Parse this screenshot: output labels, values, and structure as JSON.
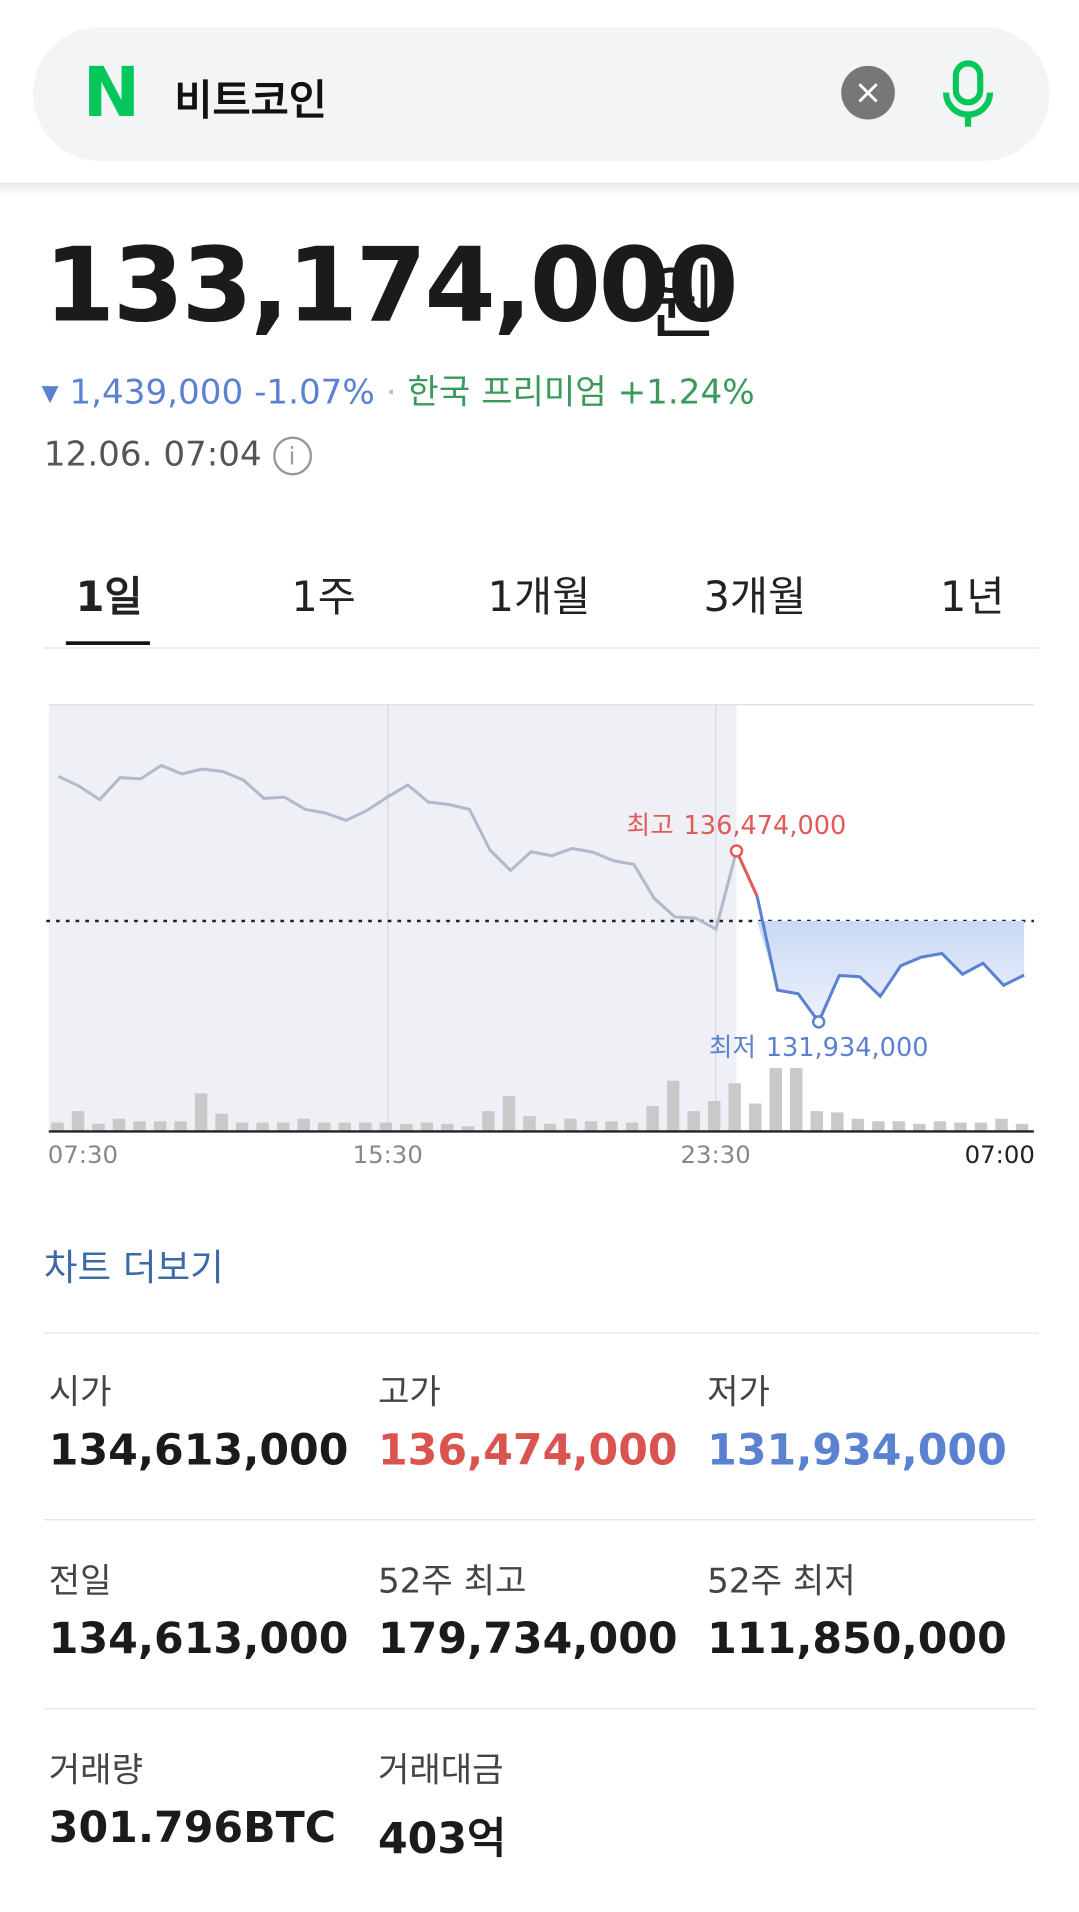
{
  "search": {
    "query": "비트코인"
  },
  "quote": {
    "price": "133,174,000",
    "unit": "원",
    "change": "1,439,000",
    "change_pct": "-1.07%",
    "premium_label": "한국 프리미엄",
    "premium": "+1.24%",
    "time": "12.06. 07:04"
  },
  "tabs": [
    "1일",
    "1주",
    "1개월",
    "3개월",
    "1년"
  ],
  "chart_data": {
    "type": "line",
    "values": [
      138452000,
      138193000,
      137836000,
      138420000,
      138387000,
      138744000,
      138517000,
      138647000,
      138582000,
      138355000,
      137868000,
      137901000,
      137577000,
      137479000,
      137285000,
      137544000,
      137901000,
      138225000,
      137771000,
      137706000,
      137577000,
      136500000,
      135955000,
      136450000,
      136344000,
      136539000,
      136442000,
      136215000,
      136117000,
      135209000,
      134723000,
      134690000,
      134398000,
      136474000,
      135274000,
      132777000,
      132680000,
      131934000,
      133166000,
      133134000,
      132615000,
      133426000,
      133653000,
      133750000,
      133199000,
      133491000,
      132907000,
      133174000
    ],
    "volume": [
      7,
      16,
      6,
      10,
      8,
      8,
      8,
      30,
      14,
      7,
      7,
      7,
      10,
      7,
      7,
      7,
      7,
      6,
      7,
      6,
      4,
      16,
      28,
      12,
      6,
      10,
      8,
      8,
      7,
      20,
      40,
      16,
      24,
      38,
      22,
      50,
      50,
      16,
      15,
      10,
      8,
      8,
      6,
      8,
      7,
      7,
      10,
      6
    ],
    "prev_close": 134613000,
    "ylim": [
      131000000,
      140000000
    ],
    "xtick_labels": [
      "07:30",
      "15:30",
      "23:30",
      "07:00"
    ],
    "high_label": "최고",
    "high_text": "136,474,000",
    "low_label": "최저",
    "low_text": "131,934,000"
  },
  "more_chart": "차트 더보기",
  "stats": [
    [
      {
        "label": "시가",
        "value": "134,613,000"
      },
      {
        "label": "고가",
        "value": "136,474,000"
      },
      {
        "label": "저가",
        "value": "131,934,000"
      }
    ],
    [
      {
        "label": "전일",
        "value": "134,613,000"
      },
      {
        "label": "52주 최고",
        "value": "179,734,000"
      },
      {
        "label": "52주 최저",
        "value": "111,850,000"
      }
    ],
    [
      {
        "label": "거래량",
        "value": "301.796BTC"
      },
      {
        "label": "거래대금",
        "value": "403억"
      }
    ]
  ]
}
